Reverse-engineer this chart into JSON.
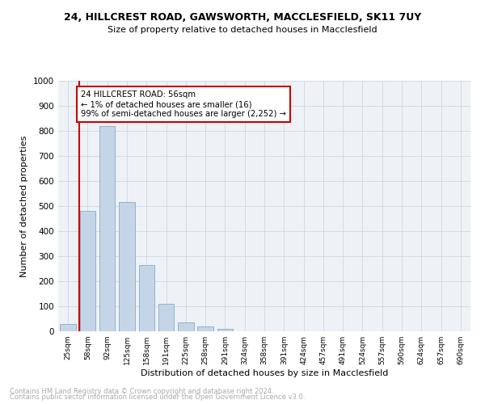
{
  "title1": "24, HILLCREST ROAD, GAWSWORTH, MACCLESFIELD, SK11 7UY",
  "title2": "Size of property relative to detached houses in Macclesfield",
  "xlabel": "Distribution of detached houses by size in Macclesfield",
  "ylabel": "Number of detached properties",
  "footnote1": "Contains HM Land Registry data © Crown copyright and database right 2024.",
  "footnote2": "Contains public sector information licensed under the Open Government Licence v3.0.",
  "categories": [
    "25sqm",
    "58sqm",
    "92sqm",
    "125sqm",
    "158sqm",
    "191sqm",
    "225sqm",
    "258sqm",
    "291sqm",
    "324sqm",
    "358sqm",
    "391sqm",
    "424sqm",
    "457sqm",
    "491sqm",
    "524sqm",
    "557sqm",
    "590sqm",
    "624sqm",
    "657sqm",
    "690sqm"
  ],
  "values": [
    30,
    480,
    820,
    515,
    265,
    110,
    35,
    20,
    10,
    0,
    0,
    0,
    0,
    0,
    0,
    0,
    0,
    0,
    0,
    0,
    0
  ],
  "bar_color": "#c5d5e8",
  "bar_edge_color": "#7a9cbf",
  "highlight_color": "#cc0000",
  "annotation_text": "24 HILLCREST ROAD: 56sqm\n← 1% of detached houses are smaller (16)\n99% of semi-detached houses are larger (2,252) →",
  "annotation_box_color": "#ffffff",
  "annotation_box_edge": "#cc0000",
  "ylim": [
    0,
    1000
  ],
  "yticks": [
    0,
    100,
    200,
    300,
    400,
    500,
    600,
    700,
    800,
    900,
    1000
  ],
  "grid_color": "#c8d8e8",
  "bg_color": "#eef2f7"
}
